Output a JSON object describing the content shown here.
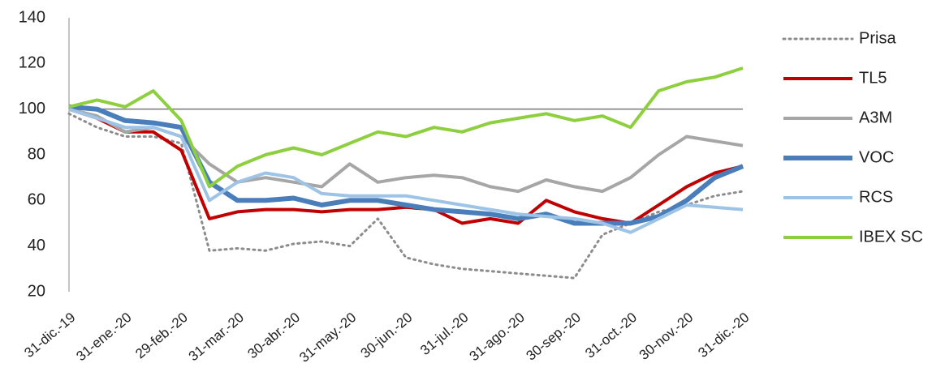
{
  "chart_data": {
    "type": "line",
    "categories": [
      "31-dic.-19",
      null,
      "31-ene.-20",
      null,
      "29-feb.-20",
      null,
      "31-mar.-20",
      null,
      "30-abr.-20",
      null,
      "31-may.-20",
      null,
      "30-jun.-20",
      null,
      "31-jul.-20",
      null,
      "31-ago.-20",
      null,
      "30-sep.-20",
      null,
      "31-oct.-20",
      null,
      "30-nov.-20",
      null,
      "31-dic.-20"
    ],
    "ylim": [
      20,
      140
    ],
    "yticks": [
      20,
      40,
      60,
      80,
      100,
      120,
      140
    ],
    "hline": 100,
    "legend": "right",
    "series": [
      {
        "name": "Prisa",
        "color": "#8c8c8c",
        "dash": "dotted",
        "width": 3,
        "values": [
          98,
          92,
          88,
          88,
          85,
          38,
          39,
          38,
          41,
          42,
          40,
          52,
          35,
          32,
          30,
          29,
          28,
          27,
          26,
          45,
          50,
          55,
          58,
          62,
          64
        ]
      },
      {
        "name": "TL5",
        "color": "#c00000",
        "width": 4,
        "values": [
          100,
          96,
          90,
          90,
          82,
          52,
          55,
          56,
          56,
          55,
          56,
          56,
          57,
          56,
          50,
          52,
          50,
          60,
          55,
          52,
          50,
          58,
          66,
          72,
          75
        ]
      },
      {
        "name": "A3M",
        "color": "#a6a6a6",
        "width": 4,
        "values": [
          100,
          97,
          90,
          92,
          88,
          76,
          68,
          70,
          68,
          66,
          76,
          68,
          70,
          71,
          70,
          66,
          64,
          69,
          66,
          64,
          70,
          80,
          88,
          86,
          84
        ]
      },
      {
        "name": "VOC",
        "color": "#4a7ebb",
        "width": 6,
        "values": [
          101,
          100,
          95,
          94,
          92,
          68,
          60,
          60,
          61,
          58,
          60,
          60,
          58,
          56,
          55,
          54,
          52,
          54,
          50,
          50,
          50,
          53,
          60,
          70,
          75
        ]
      },
      {
        "name": "RCS",
        "color": "#9dc3e6",
        "width": 4,
        "values": [
          100,
          96,
          92,
          92,
          88,
          60,
          68,
          72,
          70,
          63,
          62,
          62,
          62,
          60,
          58,
          56,
          54,
          53,
          52,
          50,
          46,
          52,
          58,
          57,
          56
        ]
      },
      {
        "name": "IBEX SC",
        "color": "#8dcf3f",
        "width": 4,
        "values": [
          101,
          104,
          101,
          108,
          95,
          66,
          75,
          80,
          83,
          80,
          85,
          90,
          88,
          92,
          90,
          94,
          96,
          98,
          95,
          97,
          92,
          108,
          112,
          114,
          118
        ]
      }
    ]
  }
}
